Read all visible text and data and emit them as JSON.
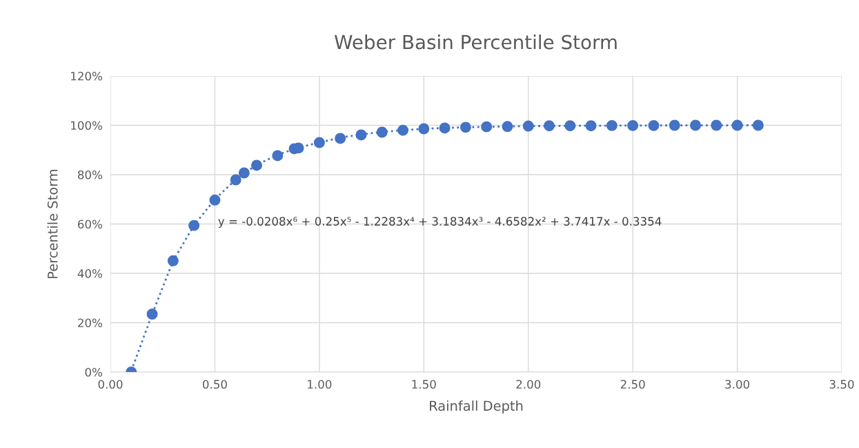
{
  "chart_data": {
    "type": "scatter",
    "title": "Weber Basin Percentile Storm",
    "xlabel": "Rainfall Depth",
    "ylabel": "Percentile Storm",
    "x": [
      0.1,
      0.2,
      0.3,
      0.4,
      0.5,
      0.6,
      0.64,
      0.7,
      0.8,
      0.88,
      0.9,
      1.0,
      1.1,
      1.2,
      1.3,
      1.4,
      1.5,
      1.6,
      1.7,
      1.8,
      1.9,
      2.0,
      2.1,
      2.2,
      2.3,
      2.4,
      2.5,
      2.6,
      2.7,
      2.8,
      2.9,
      3.0,
      3.1
    ],
    "series": [
      {
        "type": "line",
        "color": "#4472c4",
        "line_style": "dotted",
        "marker": "none",
        "x": [
          0.1,
          0.15,
          0.2,
          0.3,
          0.4,
          0.5,
          0.6,
          0.7,
          0.8,
          0.9,
          1.0,
          1.1,
          1.2,
          1.3,
          1.4,
          1.5,
          1.7,
          2.0,
          2.5,
          3.0,
          3.1
        ],
        "values": [
          0.5,
          12,
          23.5,
          45,
          59.5,
          70,
          78,
          84,
          88,
          91,
          93,
          95,
          96.3,
          97.3,
          98,
          98.6,
          99.2,
          99.7,
          99.9,
          100,
          100
        ]
      },
      {
        "color": "#4472c4",
        "marker": "circle",
        "values": [
          0,
          23.5,
          45.1,
          59.4,
          69.7,
          77.9,
          80.7,
          83.8,
          87.7,
          90.5,
          90.8,
          93.0,
          94.7,
          96.1,
          97.2,
          98.0,
          98.6,
          98.9,
          99.2,
          99.4,
          99.5,
          99.7,
          99.8,
          99.8,
          99.8,
          99.9,
          99.9,
          99.9,
          100,
          100,
          100,
          100,
          100
        ]
      }
    ],
    "xlim": [
      0,
      3.5
    ],
    "xticks": [
      {
        "value": 0,
        "label": "0.00"
      },
      {
        "value": 0.5,
        "label": "0.50"
      },
      {
        "value": 1,
        "label": "1.00"
      },
      {
        "value": 1.5,
        "label": "1.50"
      },
      {
        "value": 2,
        "label": "2.00"
      },
      {
        "value": 2.5,
        "label": "2.50"
      },
      {
        "value": 3,
        "label": "3.00"
      },
      {
        "value": 3.5,
        "label": "3.50"
      }
    ],
    "ylim": [
      0,
      120
    ],
    "yticks": [
      {
        "value": 0,
        "label": "0%"
      },
      {
        "value": 20,
        "label": "20%"
      },
      {
        "value": 40,
        "label": "40%"
      },
      {
        "value": 60,
        "label": "60%"
      },
      {
        "value": 80,
        "label": "80%"
      },
      {
        "value": 100,
        "label": "100%"
      },
      {
        "value": 120,
        "label": "120%"
      }
    ],
    "annotations": [
      "y = -0.0208x⁶ + 0.25x⁵ - 1.2283x⁴ + 3.1834x³ - 4.6582x² + 3.7417x - 0.3354"
    ],
    "grid": true,
    "legend": false
  }
}
